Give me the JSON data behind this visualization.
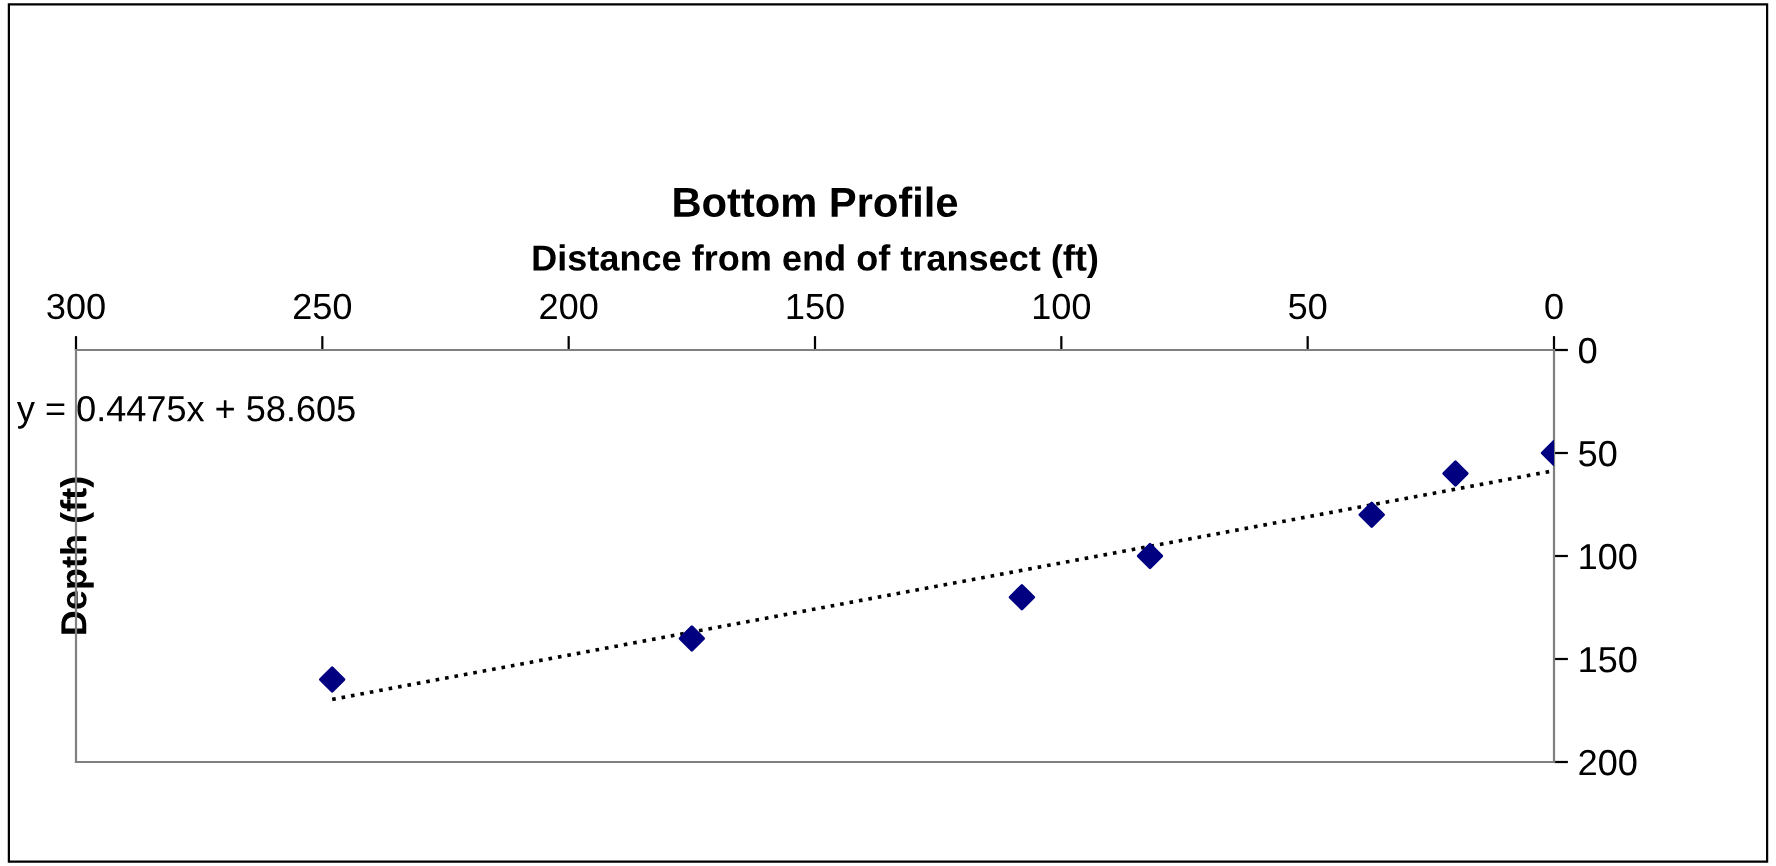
{
  "chart_data": {
    "type": "scatter",
    "title": "Bottom Profile",
    "xlabel": "Distance from end of transect (ft)",
    "ylabel": "Depth (ft)",
    "x": [
      248,
      175,
      108,
      82,
      37,
      20,
      0
    ],
    "series": [
      {
        "color": "#000080",
        "marker": "diamond",
        "values": [
          160,
          140,
          120,
          100,
          80,
          60,
          50
        ]
      },
      {
        "type": "line",
        "color": "#000000",
        "line_style": "dotted",
        "marker": "none",
        "x": [
          248,
          0
        ],
        "values": [
          169.6,
          58.6
        ]
      }
    ],
    "xlim": [
      300,
      0
    ],
    "xticks": [
      300,
      250,
      200,
      150,
      100,
      50,
      0
    ],
    "ylim": [
      200,
      0
    ],
    "yticks": [
      0,
      50,
      100,
      150,
      200
    ],
    "grid": false,
    "legend": false,
    "annotations": [
      "y = 0.4475x + 58.605"
    ]
  }
}
